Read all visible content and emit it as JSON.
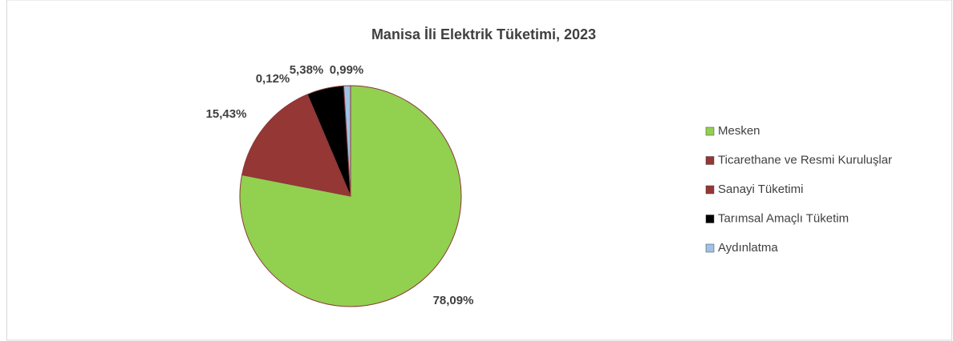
{
  "chart_data": {
    "type": "pie",
    "title": "Manisa İli Elektrik Tüketimi, 2023",
    "categories": [
      "Mesken",
      "Ticarethane ve Resmi Kuruluşlar",
      "Sanayi Tüketimi",
      "Tarımsal Amaçlı Tüketim",
      "Aydınlatma"
    ],
    "values": [
      78.09,
      15.43,
      0.12,
      5.38,
      0.99
    ],
    "value_labels": [
      "78,09%",
      "15,43%",
      "0,12%",
      "5,38%",
      "0,99%"
    ],
    "colors": [
      "#92d050",
      "#953735",
      "#953735",
      "#000000",
      "#9dc3e6"
    ],
    "legend": "right"
  }
}
